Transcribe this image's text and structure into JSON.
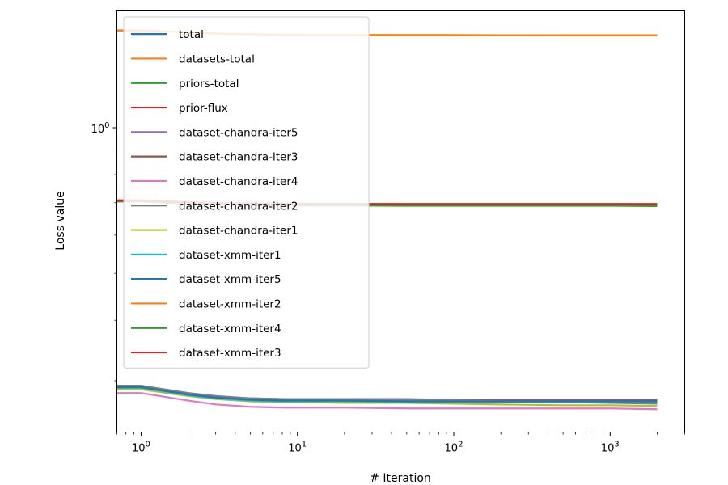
{
  "chart_data": {
    "type": "line",
    "xlabel": "# Iteration",
    "ylabel": "Loss value",
    "xscale": "log",
    "yscale": "log",
    "xlim": [
      0.7,
      3000
    ],
    "ylim": [
      0.235,
      1.75
    ],
    "grid": false,
    "legend_position": "upper-left",
    "x_tick_labels": [
      {
        "value": 1,
        "base": "10",
        "exp": "0"
      },
      {
        "value": 10,
        "base": "10",
        "exp": "1"
      },
      {
        "value": 100,
        "base": "10",
        "exp": "2"
      },
      {
        "value": 1000,
        "base": "10",
        "exp": "3"
      }
    ],
    "y_tick_labels": [
      {
        "value": 1,
        "base": "10",
        "exp": "0"
      }
    ],
    "x": [
      0.7,
      1,
      2,
      3,
      5,
      8,
      10,
      20,
      50,
      100,
      200,
      500,
      1000,
      2000
    ],
    "series": [
      {
        "name": "total",
        "color": "#1f77b4",
        "values": [
          0.291,
          0.291,
          0.281,
          0.277,
          0.274,
          0.273,
          0.273,
          0.273,
          0.272,
          0.272,
          0.272,
          0.271,
          0.271,
          0.271
        ]
      },
      {
        "name": "datasets-total",
        "color": "#ff7f0e",
        "values": [
          1.59,
          1.59,
          1.575,
          1.566,
          1.56,
          1.557,
          1.556,
          1.555,
          1.554,
          1.554,
          1.553,
          1.553,
          1.553,
          1.553
        ]
      },
      {
        "name": "priors-total",
        "color": "#2ca02c",
        "values": [
          0.705,
          0.705,
          0.698,
          0.695,
          0.693,
          0.692,
          0.692,
          0.692,
          0.691,
          0.691,
          0.691,
          0.691,
          0.691,
          0.69
        ]
      },
      {
        "name": "prior-flux",
        "color": "#d62728",
        "values": [
          0.708,
          0.708,
          0.702,
          0.699,
          0.697,
          0.697,
          0.697,
          0.696,
          0.696,
          0.696,
          0.696,
          0.696,
          0.696,
          0.696
        ]
      },
      {
        "name": "dataset-chandra-iter5",
        "color": "#9467bd",
        "values": [
          0.293,
          0.293,
          0.283,
          0.279,
          0.276,
          0.275,
          0.275,
          0.275,
          0.275,
          0.274,
          0.274,
          0.274,
          0.274,
          0.274
        ]
      },
      {
        "name": "dataset-chandra-iter3",
        "color": "#8c564b",
        "values": [
          0.292,
          0.292,
          0.282,
          0.278,
          0.275,
          0.274,
          0.274,
          0.274,
          0.273,
          0.273,
          0.273,
          0.273,
          0.273,
          0.273
        ]
      },
      {
        "name": "dataset-chandra-iter4",
        "color": "#e377c2",
        "values": [
          0.283,
          0.283,
          0.273,
          0.268,
          0.265,
          0.264,
          0.264,
          0.264,
          0.263,
          0.263,
          0.263,
          0.263,
          0.263,
          0.262
        ]
      },
      {
        "name": "dataset-chandra-iter2",
        "color": "#7f7f7f",
        "values": [
          0.293,
          0.293,
          0.283,
          0.278,
          0.276,
          0.275,
          0.275,
          0.274,
          0.274,
          0.273,
          0.272,
          0.271,
          0.27,
          0.269
        ]
      },
      {
        "name": "dataset-chandra-iter1",
        "color": "#bcbd22",
        "values": [
          0.288,
          0.288,
          0.279,
          0.275,
          0.272,
          0.271,
          0.271,
          0.27,
          0.27,
          0.269,
          0.268,
          0.267,
          0.267,
          0.266
        ]
      },
      {
        "name": "dataset-xmm-iter1",
        "color": "#17becf",
        "values": [
          0.29,
          0.29,
          0.28,
          0.276,
          0.273,
          0.272,
          0.272,
          0.272,
          0.271,
          0.271,
          0.271,
          0.271,
          0.271,
          0.271
        ]
      },
      {
        "name": "dataset-xmm-iter5",
        "color": "#1f77b4",
        "values": [
          0.291,
          0.291,
          0.281,
          0.277,
          0.274,
          0.273,
          0.273,
          0.273,
          0.272,
          0.272,
          0.272,
          0.272,
          0.272,
          0.272
        ]
      },
      {
        "name": "dataset-xmm-iter2",
        "color": "#ff7f0e",
        "values": [
          1.588,
          1.588,
          1.574,
          1.565,
          1.559,
          1.556,
          1.555,
          1.554,
          1.553,
          1.553,
          1.553,
          1.552,
          1.552,
          1.552
        ]
      },
      {
        "name": "dataset-xmm-iter4",
        "color": "#2ca02c",
        "values": [
          0.704,
          0.704,
          0.697,
          0.694,
          0.692,
          0.691,
          0.691,
          0.691,
          0.69,
          0.69,
          0.69,
          0.69,
          0.69,
          0.689
        ]
      },
      {
        "name": "dataset-xmm-iter3",
        "color": "#d62728",
        "values": [
          0.707,
          0.707,
          0.701,
          0.698,
          0.697,
          0.696,
          0.696,
          0.696,
          0.695,
          0.695,
          0.695,
          0.695,
          0.695,
          0.695
        ]
      }
    ]
  }
}
